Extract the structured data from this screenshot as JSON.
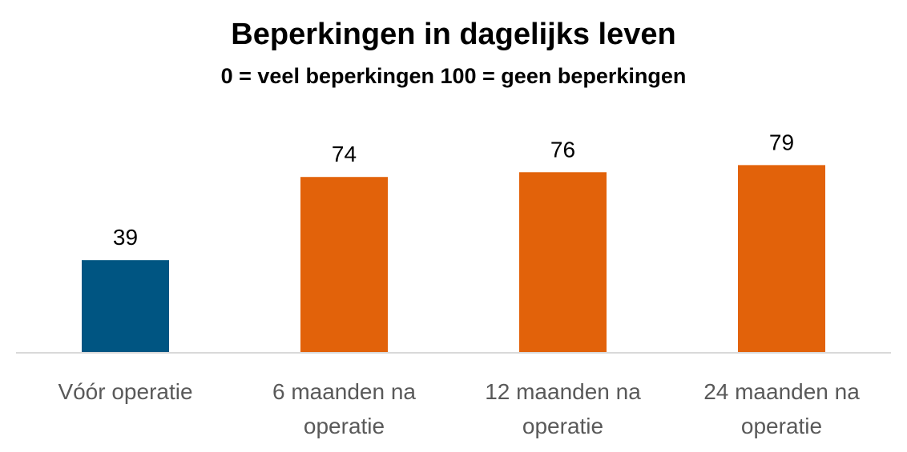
{
  "chart_data": {
    "type": "bar",
    "title": "Beperkingen in dagelijks leven",
    "subtitle": "0 = veel beperkingen  100 = geen beperkingen",
    "categories": [
      [
        "Vóór operatie"
      ],
      [
        "6 maanden na",
        "operatie"
      ],
      [
        "12 maanden na",
        "operatie"
      ],
      [
        "24 maanden na",
        "operatie"
      ]
    ],
    "values": [
      39,
      74,
      76,
      79
    ],
    "value_labels": [
      "39",
      "74",
      "76",
      "79"
    ],
    "bar_colors": [
      "#005582",
      "#E2620A",
      "#E2620A",
      "#E2620A"
    ],
    "axis_color": "#D9D9D9",
    "label_color": "#595959",
    "value_label_color": "#000000",
    "ylim": [
      0,
      100
    ],
    "grid": false,
    "legend": "none"
  }
}
